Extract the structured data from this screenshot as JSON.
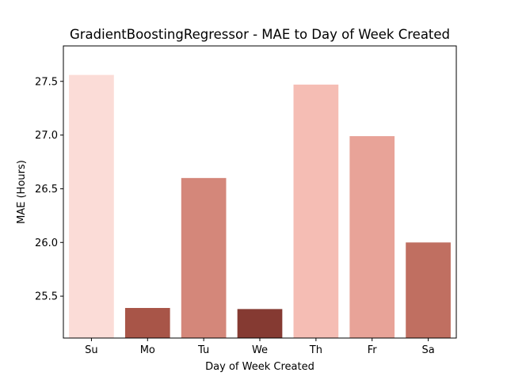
{
  "chart_data": {
    "type": "bar",
    "title": "GradientBoostingRegressor - MAE to Day of Week Created",
    "xlabel": "Day of Week Created",
    "ylabel": "MAE (Hours)",
    "categories": [
      "Su",
      "Mo",
      "Tu",
      "We",
      "Th",
      "Fr",
      "Sa"
    ],
    "values": [
      27.56,
      25.39,
      26.6,
      25.38,
      27.47,
      26.99,
      26.0
    ],
    "colors": [
      "#fbdcd7",
      "#a85548",
      "#d4877a",
      "#853a32",
      "#f5bdb4",
      "#e8a398",
      "#c06f61"
    ],
    "ylim": [
      25.11,
      27.83
    ],
    "yticks": [
      25.5,
      26.0,
      26.5,
      27.0,
      27.5
    ],
    "ytick_labels": [
      "25.5",
      "26.0",
      "26.5",
      "27.0",
      "27.5"
    ],
    "grid": false,
    "legend": "none"
  }
}
